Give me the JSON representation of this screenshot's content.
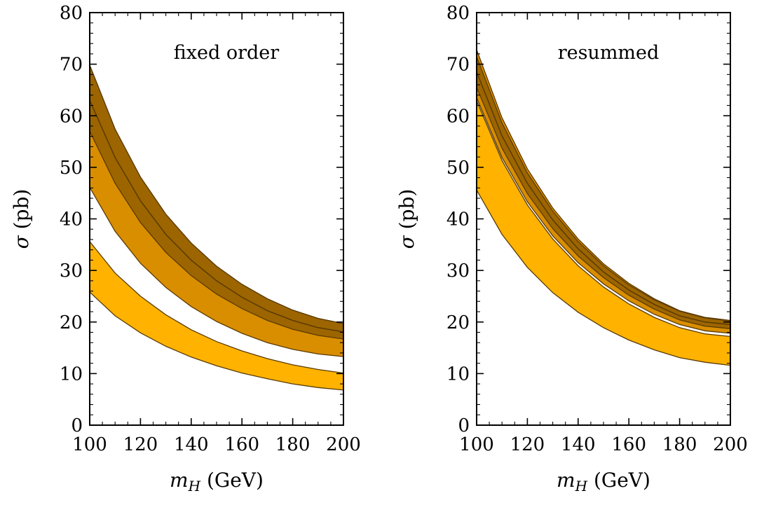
{
  "chart_data": [
    {
      "type": "area",
      "annotation": "fixed order",
      "xlabel_symbol": "m",
      "xlabel_sub": "H",
      "xlabel_unit": "(GeV)",
      "ylabel_symbol": "σ",
      "ylabel_unit": "(pb)",
      "xlim": [
        100,
        200
      ],
      "ylim": [
        0,
        80
      ],
      "x_ticks": [
        100,
        120,
        140,
        160,
        180,
        200
      ],
      "y_ticks": [
        0,
        10,
        20,
        30,
        40,
        50,
        60,
        70,
        80
      ],
      "x": [
        100,
        110,
        120,
        130,
        140,
        150,
        160,
        170,
        180,
        190,
        200
      ],
      "bands": [
        {
          "color": "#ffb300",
          "lower": [
            25.8,
            21.2,
            17.9,
            15.3,
            13.2,
            11.5,
            10.1,
            9.0,
            8.0,
            7.3,
            6.8
          ],
          "upper": [
            35.6,
            29.5,
            25.0,
            21.4,
            18.5,
            16.2,
            14.4,
            12.9,
            11.7,
            10.8,
            10.1
          ]
        },
        {
          "color": "#d98e00",
          "lower": [
            46.1,
            37.6,
            31.4,
            26.7,
            23.0,
            20.1,
            17.8,
            16.0,
            14.7,
            13.8,
            13.3
          ],
          "upper": [
            69.8,
            57.4,
            48.1,
            40.9,
            35.3,
            30.8,
            27.3,
            24.5,
            22.3,
            20.7,
            19.7
          ]
        },
        {
          "color": "#9c6500",
          "lower": [
            57.0,
            46.9,
            39.3,
            33.5,
            29.0,
            25.4,
            22.6,
            20.3,
            18.6,
            17.4,
            16.7
          ],
          "upper": [
            69.8,
            57.4,
            48.1,
            40.9,
            35.3,
            30.8,
            27.3,
            24.5,
            22.3,
            20.7,
            19.7
          ]
        }
      ],
      "central_lines": [
        [
          63.0,
          51.9,
          43.5,
          37.0,
          32.0,
          28.0,
          24.8,
          22.2,
          20.3,
          18.9,
          18.1
        ]
      ]
    },
    {
      "type": "area",
      "annotation": "resummed",
      "xlabel_symbol": "m",
      "xlabel_sub": "H",
      "xlabel_unit": "(GeV)",
      "ylabel_symbol": "σ",
      "ylabel_unit": "(pb)",
      "xlim": [
        100,
        200
      ],
      "ylim": [
        0,
        80
      ],
      "x_ticks": [
        100,
        120,
        140,
        160,
        180,
        200
      ],
      "y_ticks": [
        0,
        10,
        20,
        30,
        40,
        50,
        60,
        70,
        80
      ],
      "x": [
        100,
        110,
        120,
        130,
        140,
        150,
        160,
        170,
        180,
        190,
        200
      ],
      "bands": [
        {
          "color": "#ffb300",
          "lower": [
            45.6,
            37.0,
            30.6,
            25.7,
            21.9,
            18.9,
            16.5,
            14.6,
            13.1,
            12.2,
            11.6
          ],
          "upper": [
            62.9,
            51.3,
            42.7,
            36.1,
            30.9,
            26.8,
            23.5,
            20.9,
            18.9,
            17.7,
            17.2
          ]
        },
        {
          "color": "#d98e00",
          "lower": [
            63.5,
            51.9,
            43.3,
            36.7,
            31.5,
            27.4,
            24.1,
            21.5,
            19.5,
            18.3,
            17.8
          ],
          "upper": [
            72.8,
            59.6,
            49.7,
            42.1,
            36.1,
            31.3,
            27.5,
            24.5,
            22.2,
            20.9,
            20.3
          ]
        },
        {
          "color": "#9c6500",
          "lower": [
            65.5,
            53.7,
            44.9,
            38.1,
            32.8,
            28.6,
            25.2,
            22.5,
            20.4,
            19.2,
            18.7
          ],
          "upper": [
            71.5,
            58.6,
            48.9,
            41.5,
            35.6,
            30.9,
            27.2,
            24.3,
            22.1,
            20.8,
            20.2
          ]
        }
      ],
      "central_lines": [
        [
          68.5,
          56.1,
          46.9,
          39.8,
          34.2,
          29.7,
          26.2,
          23.4,
          21.2,
          20.0,
          19.5
        ]
      ]
    }
  ]
}
